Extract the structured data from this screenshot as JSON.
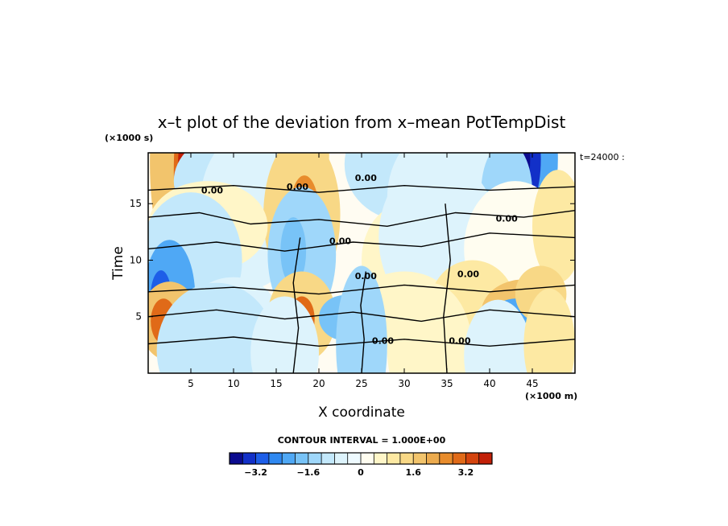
{
  "chart_data": {
    "type": "heatmap",
    "title": "x–t plot of the deviation from x–mean PotTempDist",
    "xlabel": "X coordinate",
    "ylabel": "Time",
    "x_unit": "(×1000 m)",
    "y_unit": "(×1000 s)",
    "time_note": "t=24000 :",
    "xlim": [
      0,
      50
    ],
    "ylim": [
      0,
      19.5
    ],
    "x_ticks": [
      5,
      10,
      15,
      20,
      25,
      30,
      35,
      40,
      45
    ],
    "y_ticks": [
      5,
      10,
      15
    ],
    "contour_info": "CONTOUR INTERVAL = 1.000E+00",
    "contour_labels": [
      {
        "text": "0.00",
        "x": 7.5,
        "y": 16.2
      },
      {
        "text": "0.00",
        "x": 17.5,
        "y": 16.5
      },
      {
        "text": "0.00",
        "x": 25.5,
        "y": 17.3
      },
      {
        "text": "0.00",
        "x": 42,
        "y": 13.7
      },
      {
        "text": "0.00",
        "x": 22.5,
        "y": 11.7
      },
      {
        "text": "0.00",
        "x": 25.5,
        "y": 8.6
      },
      {
        "text": "0.00",
        "x": 37.5,
        "y": 8.8
      },
      {
        "text": "0.00",
        "x": 27.5,
        "y": 2.9
      },
      {
        "text": "0.00",
        "x": 36.5,
        "y": 2.9
      }
    ],
    "colorbar": {
      "min": -4.0,
      "max": 4.0,
      "tick_labels": [
        "−3.2",
        "−1.6",
        "0",
        "1.6",
        "3.2"
      ],
      "tick_values": [
        -3.2,
        -1.6,
        0,
        1.6,
        3.2
      ],
      "colors": [
        "#0b0b8f",
        "#1230c8",
        "#1d5ee8",
        "#2f88f0",
        "#4fa8f5",
        "#78c3f7",
        "#9fd7fa",
        "#c3e8fb",
        "#ddf3fc",
        "#eefaff",
        "#fffdf0",
        "#fff6c8",
        "#fde9a3",
        "#f8d886",
        "#f2c46c",
        "#ecab4e",
        "#e88c2c",
        "#e06a18",
        "#d4440e",
        "#c22008"
      ]
    }
  }
}
